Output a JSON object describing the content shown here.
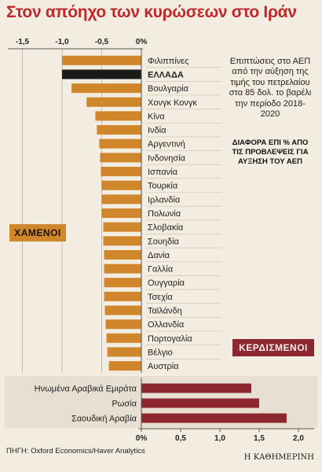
{
  "title": "Στον απόηχο των κυρώσεων στο Ιράν",
  "note": "Επιπτώσεις στο ΑΕΠ από την αύξηση της τιμής του πετρελαίου στα 85 δολ. το βαρέλι την περίοδο 2018-2020",
  "legend_note": "ΔΙΑΦΟΡΑ ΕΠΙ % ΑΠΟ ΤΙΣ ΠΡΟΒΛΕΨΕΙΣ ΓΙΑ ΑΥΞΗΣΗ ΤΟΥ ΑΕΠ",
  "tags": {
    "losers": "ΧΑΜΕΝΟΙ",
    "winners": "ΚΕΡΔΙΣΜΕΝΟΙ"
  },
  "source": "ΠΗΓΗ: Oxford Economics/Haver Analytics",
  "logo": "Η ΚΑΘΗΜΕΡΙΝΗ",
  "colors": {
    "background": "#f3ece0",
    "title": "#c0282c",
    "loss_bar": "#d0862a",
    "highlight_bar": "#1a1a1a",
    "gain_bar": "#8c2730",
    "panel": "#e7dfd2"
  },
  "chart_data": [
    {
      "type": "bar",
      "orientation": "horizontal",
      "categories": [
        "Φιλιππίνες",
        "ΕΛΛΑΔΑ",
        "Βουλγαρία",
        "Χονγκ Κονγκ",
        "Κίνα",
        "Ινδία",
        "Αργεντινή",
        "Ινδονησία",
        "Ισπανία",
        "Τουρκία",
        "Ιρλανδία",
        "Πολωνία",
        "Σλοβακία",
        "Σουηδία",
        "Δανία",
        "Γαλλία",
        "Ουγγαρία",
        "Τσεχία",
        "Ταϊλάνδη",
        "Ολλανδία",
        "Πορτογαλία",
        "Βέλγιο",
        "Αυστρία"
      ],
      "values": [
        -1.0,
        -1.0,
        -0.88,
        -0.69,
        -0.58,
        -0.56,
        -0.53,
        -0.52,
        -0.51,
        -0.5,
        -0.5,
        -0.5,
        -0.48,
        -0.48,
        -0.47,
        -0.47,
        -0.47,
        -0.47,
        -0.46,
        -0.45,
        -0.44,
        -0.43,
        -0.41
      ],
      "highlight": "ΕΛΛΑΔΑ",
      "x_ticks": [
        "-1,5",
        "-1,0",
        "-0,5",
        "0%"
      ],
      "xlim": [
        -1.5,
        0
      ]
    },
    {
      "type": "bar",
      "orientation": "horizontal",
      "categories": [
        "Ηνωμένα Αραβικά Εμιράτα",
        "Ρωσία",
        "Σαουδική Αραβία"
      ],
      "values": [
        1.4,
        1.5,
        1.85
      ],
      "x_ticks": [
        "0%",
        "0,5",
        "1,0",
        "1,5",
        "2,0"
      ],
      "xlim": [
        0,
        2.0
      ]
    }
  ]
}
